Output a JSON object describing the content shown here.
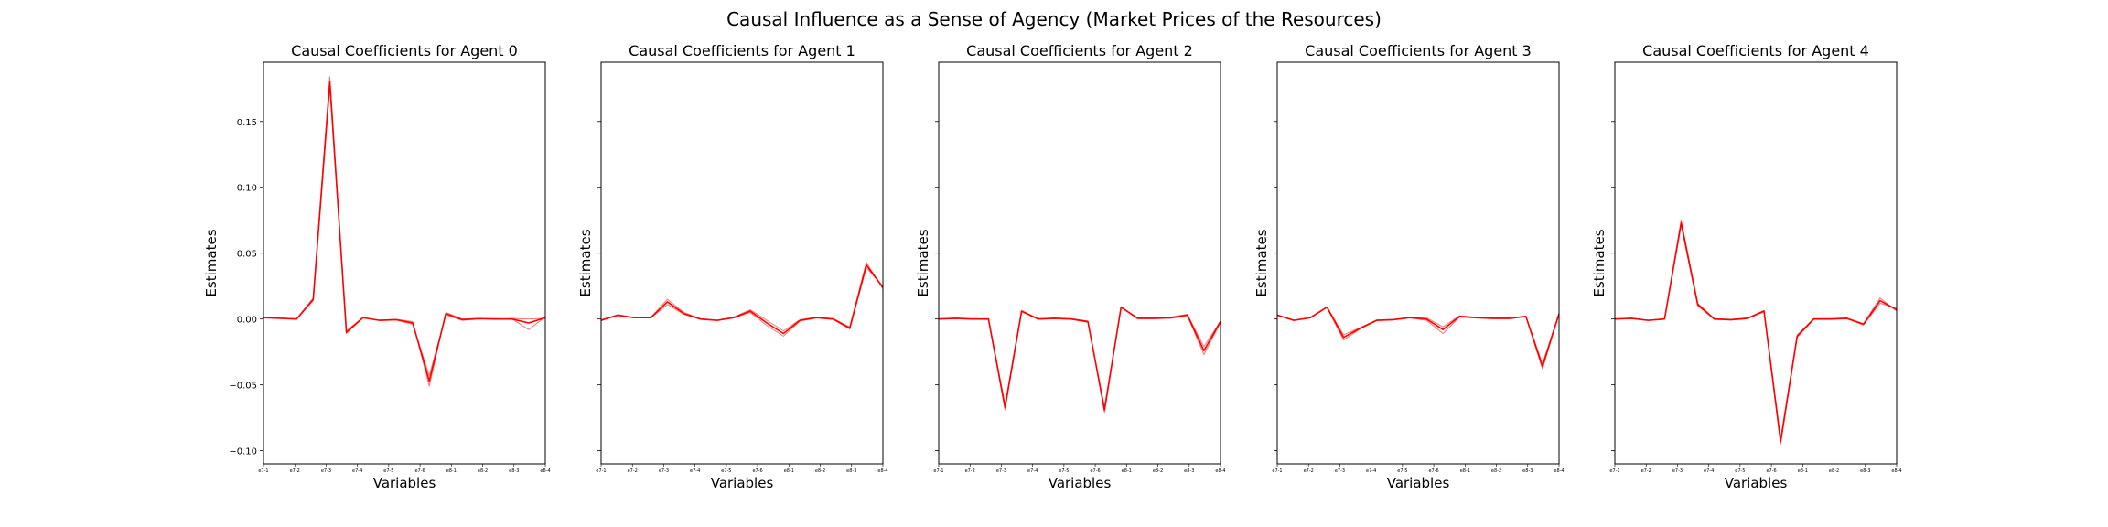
{
  "figure": {
    "title": "Causal Influence as a Sense of Agency (Market Prices of the Resources)",
    "line_color": "#ff0000"
  },
  "chart_data": [
    {
      "type": "line",
      "title": "Causal Coefficients for Agent 0",
      "xlabel": "Variables",
      "ylabel": "Estimates",
      "ylim": [
        -0.11,
        0.195
      ],
      "yticks": [
        -0.1,
        -0.05,
        0.0,
        0.05,
        0.1,
        0.15
      ],
      "ytick_labels": [
        "−0.10",
        "−0.05",
        "0.00",
        "0.05",
        "0.10",
        "0.15"
      ],
      "show_ytick_labels": true,
      "x_tick_labels": [
        "e7-1",
        "e7-2",
        "e7-3",
        "e7-4",
        "e7-5",
        "e7-6",
        "e8-1",
        "e8-2",
        "e8-3",
        "e8-4"
      ],
      "series": [
        {
          "values": [
            0.001,
            0.0005,
            0.0,
            0.015,
            0.18,
            -0.01,
            0.001,
            -0.001,
            -0.0005,
            -0.003,
            -0.047,
            0.004,
            -0.0005,
            0.0003,
            0.0,
            0.0,
            -0.003,
            0.001
          ]
        },
        {
          "values": [
            0.001,
            0.0007,
            0.0002,
            0.016,
            0.184,
            -0.011,
            0.001,
            -0.0008,
            -0.0002,
            -0.002,
            -0.051,
            0.005,
            0.0,
            0.0005,
            0.0003,
            0.0,
            -0.008,
            0.0015
          ]
        },
        {
          "values": [
            0.0012,
            0.0005,
            -0.0002,
            0.014,
            0.176,
            -0.009,
            0.0012,
            -0.0012,
            -0.0008,
            -0.004,
            -0.043,
            0.003,
            -0.001,
            0.0,
            -0.0002,
            0.0005,
            0.0,
            0.0005
          ]
        }
      ]
    },
    {
      "type": "line",
      "title": "Causal Coefficients for Agent 1",
      "xlabel": "Variables",
      "ylabel": "Estimates",
      "ylim": [
        -0.11,
        0.195
      ],
      "yticks": [
        -0.1,
        -0.05,
        0.0,
        0.05,
        0.1,
        0.15
      ],
      "show_ytick_labels": false,
      "x_tick_labels": [
        "e7-1",
        "e7-2",
        "e7-3",
        "e7-4",
        "e7-5",
        "e7-6",
        "e8-1",
        "e8-2",
        "e8-3",
        "e8-4"
      ],
      "series": [
        {
          "values": [
            -0.001,
            0.003,
            0.001,
            0.001,
            0.013,
            0.004,
            0.0,
            -0.001,
            0.001,
            0.006,
            -0.003,
            -0.011,
            -0.001,
            0.001,
            0.0,
            -0.007,
            0.041,
            0.024
          ]
        },
        {
          "values": [
            -0.0005,
            0.003,
            0.0012,
            0.0012,
            0.015,
            0.005,
            0.0002,
            -0.0008,
            0.0015,
            0.007,
            -0.001,
            -0.009,
            -0.0005,
            0.0015,
            0.0003,
            -0.006,
            0.043,
            0.023
          ]
        },
        {
          "values": [
            -0.0012,
            0.0025,
            0.0008,
            0.0008,
            0.011,
            0.0035,
            -0.0003,
            -0.0012,
            0.0008,
            0.005,
            -0.005,
            -0.013,
            -0.0015,
            0.0008,
            -0.0004,
            -0.0075,
            0.039,
            0.025
          ]
        }
      ]
    },
    {
      "type": "line",
      "title": "Causal Coefficients for Agent 2",
      "xlabel": "Variables",
      "ylabel": "Estimates",
      "ylim": [
        -0.11,
        0.195
      ],
      "yticks": [
        -0.1,
        -0.05,
        0.0,
        0.05,
        0.1,
        0.15
      ],
      "show_ytick_labels": false,
      "x_tick_labels": [
        "e7-1",
        "e7-2",
        "e7-3",
        "e7-4",
        "e7-5",
        "e7-6",
        "e8-1",
        "e8-2",
        "e8-3",
        "e8-4"
      ],
      "series": [
        {
          "values": [
            0.0,
            0.0005,
            0.0,
            0.0,
            -0.067,
            0.006,
            0.0,
            0.0005,
            0.0,
            -0.002,
            -0.069,
            0.009,
            0.0005,
            0.0005,
            0.001,
            0.003,
            -0.024,
            -0.002
          ]
        },
        {
          "values": [
            0.0002,
            0.0007,
            0.0002,
            0.0002,
            -0.065,
            0.0065,
            0.0003,
            0.0007,
            0.0003,
            -0.0015,
            -0.071,
            0.0092,
            0.0008,
            0.0008,
            0.0015,
            0.0035,
            -0.021,
            -0.0015
          ]
        },
        {
          "values": [
            -0.0002,
            0.0003,
            -0.0002,
            -0.0003,
            -0.069,
            0.0055,
            -0.0003,
            0.0002,
            -0.0003,
            -0.0025,
            -0.067,
            0.0088,
            0.0002,
            0.0002,
            0.0005,
            0.0025,
            -0.027,
            -0.0025
          ]
        }
      ]
    },
    {
      "type": "line",
      "title": "Causal Coefficients for Agent 3",
      "xlabel": "Variables",
      "ylabel": "Estimates",
      "ylim": [
        -0.11,
        0.195
      ],
      "yticks": [
        -0.1,
        -0.05,
        0.0,
        0.05,
        0.1,
        0.15
      ],
      "show_ytick_labels": false,
      "x_tick_labels": [
        "e7-1",
        "e7-2",
        "e7-3",
        "e7-4",
        "e7-5",
        "e7-6",
        "e8-1",
        "e8-2",
        "e8-3",
        "e8-4"
      ],
      "series": [
        {
          "values": [
            0.003,
            -0.001,
            0.001,
            0.009,
            -0.014,
            -0.007,
            -0.001,
            -0.0005,
            0.001,
            0.0,
            -0.008,
            0.002,
            0.001,
            0.0005,
            0.0005,
            0.002,
            -0.036,
            0.004
          ]
        },
        {
          "values": [
            0.0032,
            -0.0008,
            0.0012,
            0.0092,
            -0.012,
            -0.0065,
            -0.0008,
            -0.0002,
            0.0012,
            0.001,
            -0.006,
            0.0025,
            0.0013,
            0.0008,
            0.0008,
            0.0022,
            -0.034,
            0.0042
          ]
        },
        {
          "values": [
            0.0028,
            -0.0012,
            0.0008,
            0.0088,
            -0.016,
            -0.0075,
            -0.0012,
            -0.0008,
            0.0008,
            -0.001,
            -0.011,
            0.0015,
            0.0007,
            0.0002,
            0.0002,
            0.0018,
            -0.038,
            0.0038
          ]
        }
      ]
    },
    {
      "type": "line",
      "title": "Causal Coefficients for Agent 4",
      "xlabel": "Variables",
      "ylabel": "Estimates",
      "ylim": [
        -0.11,
        0.195
      ],
      "yticks": [
        -0.1,
        -0.05,
        0.0,
        0.05,
        0.1,
        0.15
      ],
      "show_ytick_labels": false,
      "x_tick_labels": [
        "e7-1",
        "e7-2",
        "e7-3",
        "e7-4",
        "e7-5",
        "e7-6",
        "e8-1",
        "e8-2",
        "e8-3",
        "e8-4"
      ],
      "series": [
        {
          "values": [
            0.0,
            0.0005,
            -0.001,
            0.0,
            0.073,
            0.011,
            0.0,
            -0.0005,
            0.0005,
            0.006,
            -0.093,
            -0.013,
            0.0,
            0.0,
            0.0005,
            -0.004,
            0.014,
            0.007
          ]
        },
        {
          "values": [
            0.0002,
            0.0007,
            -0.0008,
            0.0002,
            0.075,
            0.012,
            0.0003,
            -0.0002,
            0.0008,
            0.0065,
            -0.091,
            -0.012,
            0.0003,
            0.0003,
            0.0008,
            -0.0035,
            0.016,
            0.006
          ]
        },
        {
          "values": [
            -0.0002,
            0.0003,
            -0.0012,
            -0.0002,
            0.071,
            0.01,
            -0.0003,
            -0.0008,
            0.0002,
            0.0055,
            -0.095,
            -0.014,
            -0.0003,
            -0.0003,
            0.0002,
            -0.0045,
            0.012,
            0.008
          ]
        }
      ]
    }
  ]
}
